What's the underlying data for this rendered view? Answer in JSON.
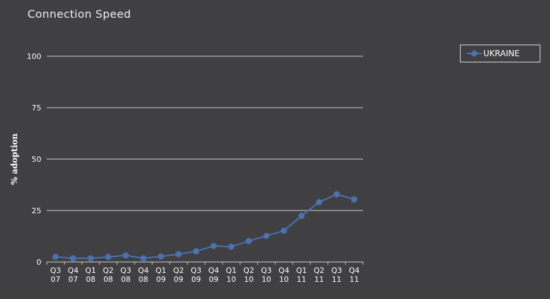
{
  "chart_data": {
    "type": "line",
    "title": "Connection Speed",
    "xlabel": "",
    "ylabel": "% adoption",
    "ylim": [
      0,
      100
    ],
    "yticks": [
      0,
      25,
      50,
      75,
      100
    ],
    "grid": true,
    "legend_position": "top-right",
    "categories": [
      [
        "Q3",
        "07"
      ],
      [
        "Q4",
        "07"
      ],
      [
        "Q1",
        "08"
      ],
      [
        "Q2",
        "08"
      ],
      [
        "Q3",
        "08"
      ],
      [
        "Q4",
        "08"
      ],
      [
        "Q1",
        "09"
      ],
      [
        "Q2",
        "09"
      ],
      [
        "Q3",
        "09"
      ],
      [
        "Q4",
        "09"
      ],
      [
        "Q1",
        "10"
      ],
      [
        "Q2",
        "10"
      ],
      [
        "Q3",
        "10"
      ],
      [
        "Q4",
        "10"
      ],
      [
        "Q1",
        "11"
      ],
      [
        "Q2",
        "11"
      ],
      [
        "Q3",
        "11"
      ],
      [
        "Q4",
        "11"
      ]
    ],
    "series": [
      {
        "name": "UKRAINE",
        "color": "#4a72b0",
        "values": [
          2.5,
          1.8,
          1.8,
          2.4,
          3.2,
          1.8,
          2.7,
          3.8,
          5.2,
          7.8,
          7.4,
          10.2,
          12.7,
          15.2,
          22.4,
          29.1,
          32.9,
          30.4
        ]
      }
    ]
  }
}
